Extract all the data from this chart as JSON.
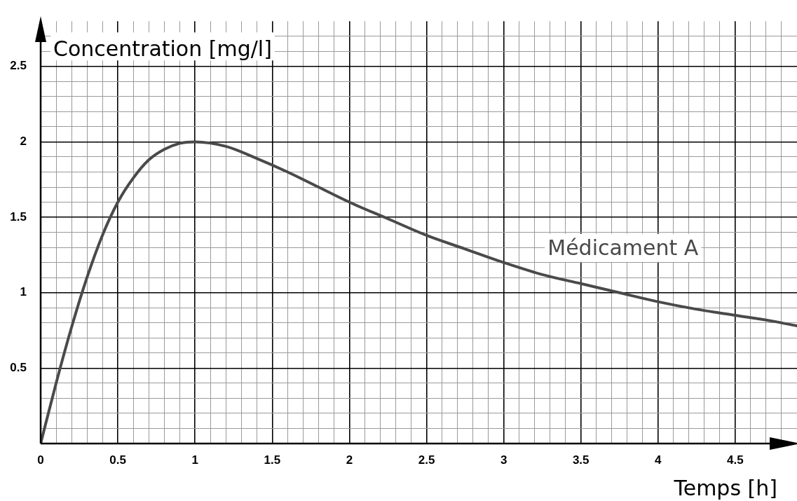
{
  "chart_data": {
    "type": "line",
    "xlabel": "Temps [h]",
    "ylabel": "Concentration [mg/l]",
    "xlim": [
      0,
      4.9
    ],
    "ylim": [
      0,
      2.8
    ],
    "xticks": [
      0,
      {
        "value": 0.1,
        "label": null
      },
      {
        "value": 0.2,
        "label": null
      },
      {
        "value": 0.3,
        "label": null
      },
      {
        "value": 0.4,
        "label": null
      },
      0.5,
      {
        "value": 0.6,
        "label": null
      },
      {
        "value": 0.7,
        "label": null
      },
      {
        "value": 0.8,
        "label": null
      },
      {
        "value": 0.9,
        "label": null
      },
      1,
      {
        "value": 1.1,
        "label": null
      },
      {
        "value": 1.2,
        "label": null
      },
      {
        "value": 1.3,
        "label": null
      },
      {
        "value": 1.4,
        "label": null
      },
      1.5,
      {
        "value": 1.6,
        "label": null
      },
      {
        "value": 1.7,
        "label": null
      },
      {
        "value": 1.8,
        "label": null
      },
      {
        "value": 1.9,
        "label": null
      },
      2,
      {
        "value": 2.1,
        "label": null
      },
      {
        "value": 2.2,
        "label": null
      },
      {
        "value": 2.3,
        "label": null
      },
      {
        "value": 2.4,
        "label": null
      },
      2.5,
      {
        "value": 2.6,
        "label": null
      },
      {
        "value": 2.7,
        "label": null
      },
      {
        "value": 2.8,
        "label": null
      },
      {
        "value": 2.9,
        "label": null
      },
      3,
      {
        "value": 3.1,
        "label": null
      },
      {
        "value": 3.2,
        "label": null
      },
      {
        "value": 3.3,
        "label": null
      },
      {
        "value": 3.4,
        "label": null
      },
      3.5,
      {
        "value": 3.6,
        "label": null
      },
      {
        "value": 3.7,
        "label": null
      },
      {
        "value": 3.8,
        "label": null
      },
      {
        "value": 3.9,
        "label": null
      },
      4,
      {
        "value": 4.1,
        "label": null
      },
      {
        "value": 4.2,
        "label": null
      },
      {
        "value": 4.3,
        "label": null
      },
      {
        "value": 4.4,
        "label": null
      },
      4.5,
      {
        "value": 4.6,
        "label": null
      },
      {
        "value": 4.7,
        "label": null
      },
      {
        "value": 4.8,
        "label": null
      }
    ],
    "yticks": [
      {
        "value": 0,
        "label": null
      },
      {
        "value": 0.1,
        "label": null
      },
      {
        "value": 0.2,
        "label": null
      },
      {
        "value": 0.3,
        "label": null
      },
      {
        "value": 0.4,
        "label": null
      },
      0.5,
      {
        "value": 0.6,
        "label": null
      },
      {
        "value": 0.7,
        "label": null
      },
      {
        "value": 0.8,
        "label": null
      },
      {
        "value": 0.9,
        "label": null
      },
      1,
      {
        "value": 1.1,
        "label": null
      },
      {
        "value": 1.2,
        "label": null
      },
      {
        "value": 1.3,
        "label": null
      },
      {
        "value": 1.4,
        "label": null
      },
      1.5,
      {
        "value": 1.6,
        "label": null
      },
      {
        "value": 1.7,
        "label": null
      },
      {
        "value": 1.8,
        "label": null
      },
      {
        "value": 1.9,
        "label": null
      },
      2,
      {
        "value": 2.1,
        "label": null
      },
      {
        "value": 2.2,
        "label": null
      },
      {
        "value": 2.3,
        "label": null
      },
      {
        "value": 2.4,
        "label": null
      },
      2.5,
      {
        "value": 2.6,
        "label": null
      },
      {
        "value": 2.7,
        "label": null
      }
    ],
    "grid": true,
    "legend": false,
    "marker": "none",
    "line_style": "solid",
    "x": [
      0,
      0.1,
      0.2,
      0.3,
      0.4,
      0.5,
      0.6,
      0.7,
      0.8,
      0.9,
      1,
      1.2,
      1.4,
      1.6,
      1.8,
      2,
      2.25,
      2.5,
      2.75,
      3,
      3.25,
      3.5,
      3.75,
      4,
      4.25,
      4.5,
      4.75,
      4.9
    ],
    "series": [
      {
        "name": "Médicament A",
        "color": "#4a4a4a",
        "values": [
          0,
          0.4,
          0.77,
          1.1,
          1.38,
          1.6,
          1.76,
          1.88,
          1.95,
          1.99,
          2,
          1.97,
          1.89,
          1.8,
          1.7,
          1.6,
          1.49,
          1.38,
          1.29,
          1.2,
          1.12,
          1.06,
          1,
          0.94,
          0.89,
          0.85,
          0.81,
          0.78
        ]
      }
    ]
  }
}
